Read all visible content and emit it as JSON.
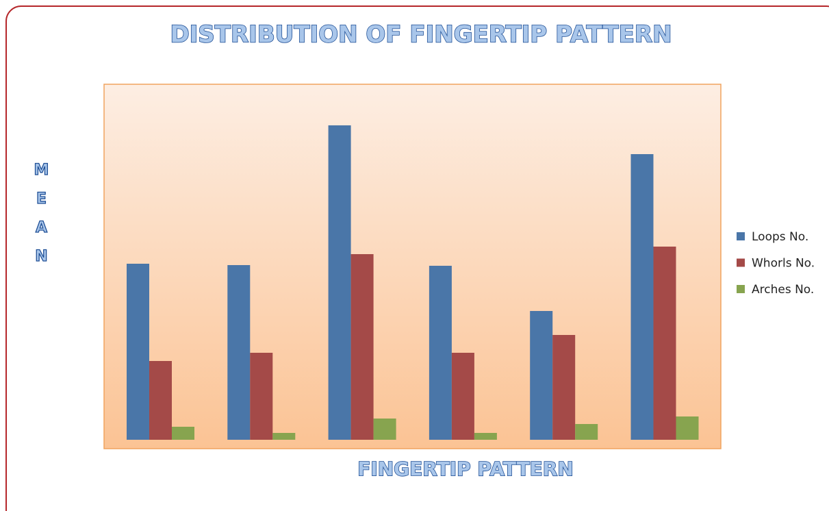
{
  "chart_data": {
    "type": "bar",
    "title": "DISTRIBUTION OF FINGERTIP PATTERN",
    "x_label": "FINGERTIP PATTERN",
    "y_label": "MEAN",
    "categories": [
      null,
      null,
      null,
      null,
      null,
      null
    ],
    "series": [
      {
        "name": "Loops No.",
        "color": "#4a76a8",
        "values": [
          257,
          255,
          459,
          254,
          188,
          417
        ]
      },
      {
        "name": "Whorls No.",
        "color": "#a44a48",
        "values": [
          115,
          127,
          271,
          127,
          153,
          282
        ]
      },
      {
        "name": "Arches No.",
        "color": "#87a44f",
        "values": [
          19,
          10,
          31,
          10,
          23,
          34
        ]
      }
    ],
    "ylim": [
      0,
      519
    ],
    "legend": "right"
  }
}
